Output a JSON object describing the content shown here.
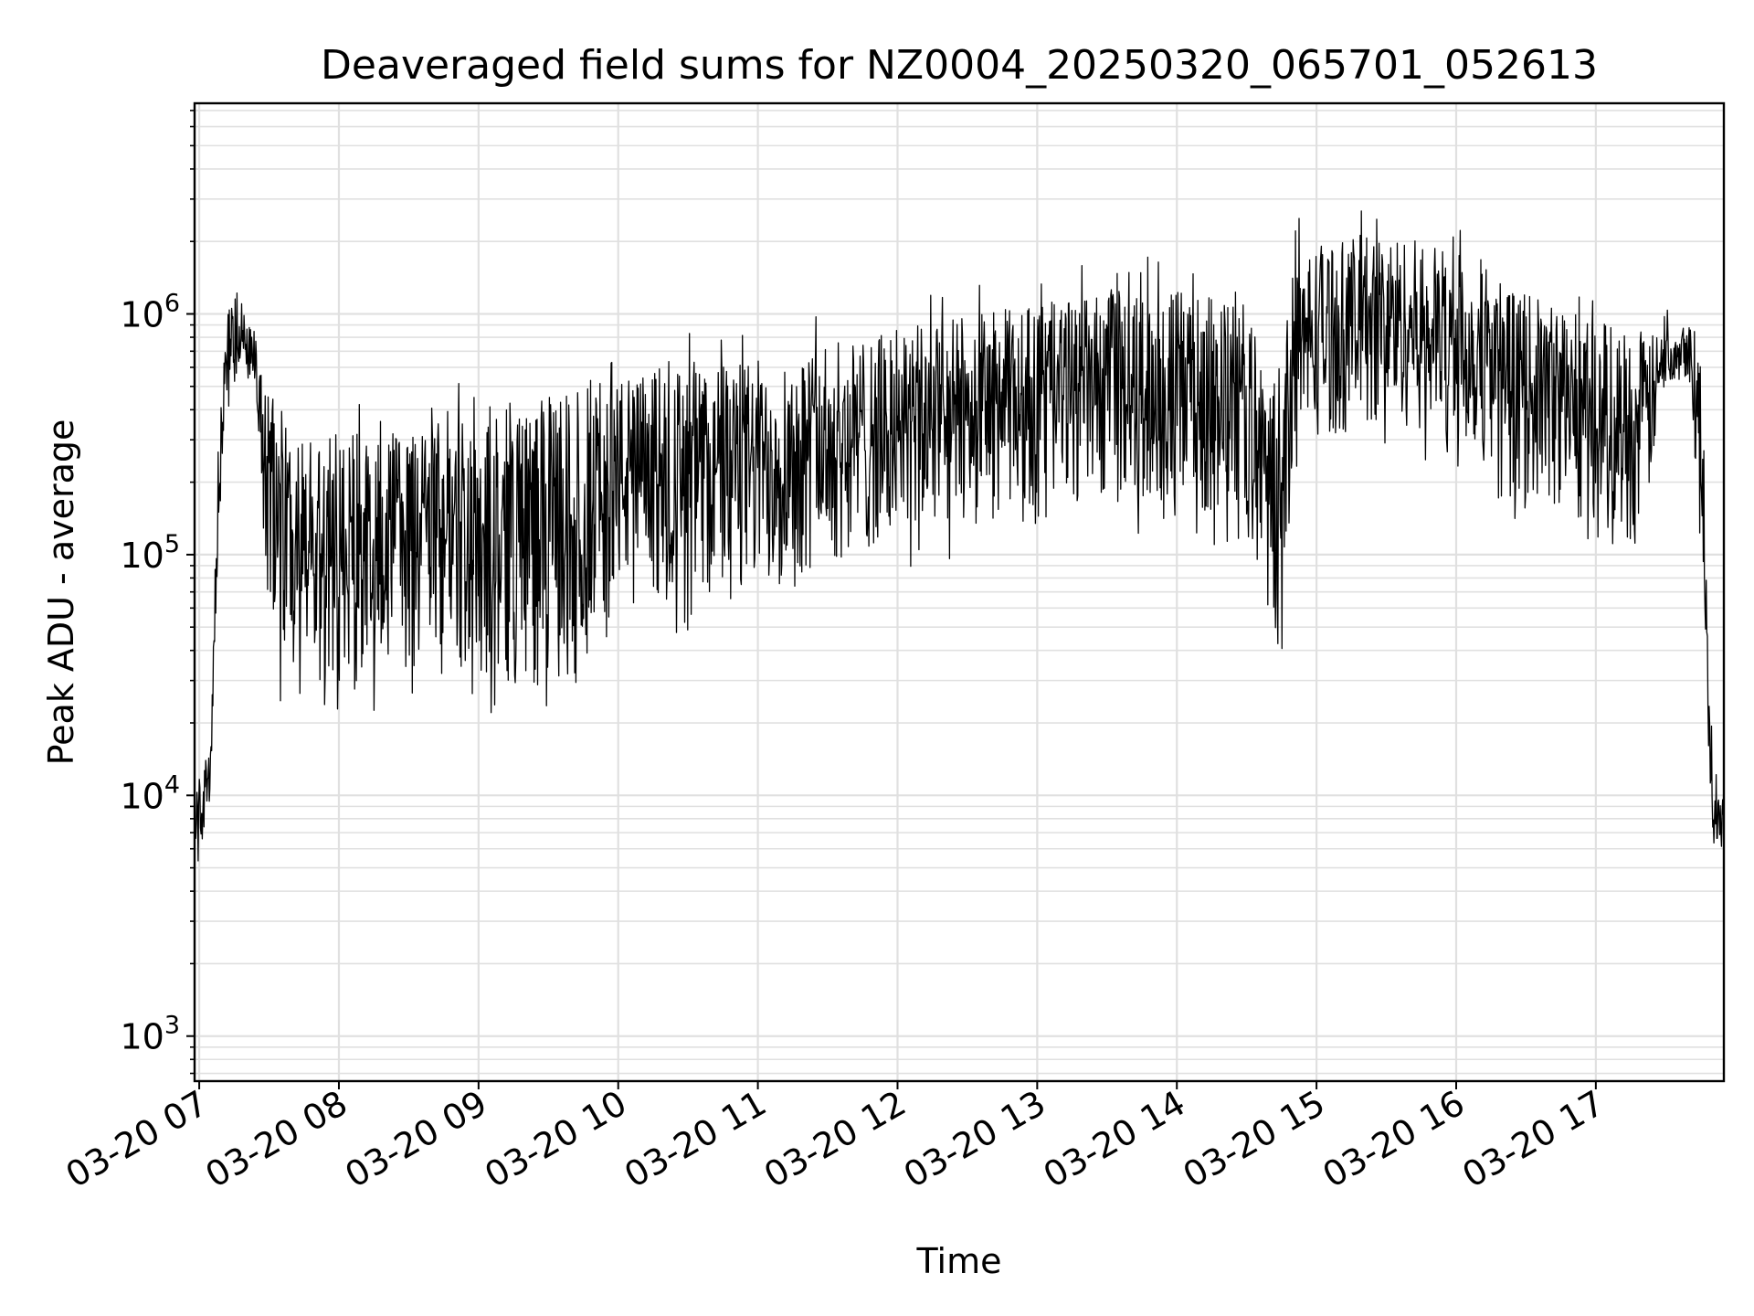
{
  "chart_data": {
    "type": "line",
    "title": "Deaveraged field sums for NZ0004_20250320_065701_052613",
    "xlabel": "Time",
    "ylabel": "Peak ADU - average",
    "y_scale": "log",
    "grid": true,
    "grid_minor": true,
    "line_color": "#000000",
    "grid_color": "#e0e0e0",
    "xlim": [
      "2025-03-20 06:58",
      "2025-03-20 17:55"
    ],
    "ylim": [
      650,
      7500000
    ],
    "x_ticks": [
      "2025-03-20 07:00",
      "2025-03-20 08:00",
      "2025-03-20 09:00",
      "2025-03-20 10:00",
      "2025-03-20 11:00",
      "2025-03-20 12:00",
      "2025-03-20 13:00",
      "2025-03-20 14:00",
      "2025-03-20 15:00",
      "2025-03-20 16:00",
      "2025-03-20 17:00"
    ],
    "x_tick_labels": [
      "03-20 07",
      "03-20 08",
      "03-20 09",
      "03-20 10",
      "03-20 11",
      "03-20 12",
      "03-20 13",
      "03-20 14",
      "03-20 15",
      "03-20 16",
      "03-20 17"
    ],
    "y_ticks": [
      1000,
      10000,
      100000,
      1000000
    ],
    "y_tick_labels": [
      {
        "base": "10",
        "exp": "3"
      },
      {
        "base": "10",
        "exp": "4"
      },
      {
        "base": "10",
        "exp": "5"
      },
      {
        "base": "10",
        "exp": "6"
      }
    ],
    "envelope": {
      "x": [
        "2025-03-20 06:58",
        "2025-03-20 07:00",
        "2025-03-20 07:05",
        "2025-03-20 07:08",
        "2025-03-20 07:12",
        "2025-03-20 07:15",
        "2025-03-20 07:20",
        "2025-03-20 07:25",
        "2025-03-20 07:30",
        "2025-03-20 07:35",
        "2025-03-20 07:45",
        "2025-03-20 08:00",
        "2025-03-20 08:30",
        "2025-03-20 09:00",
        "2025-03-20 09:30",
        "2025-03-20 09:45",
        "2025-03-20 10:00",
        "2025-03-20 10:30",
        "2025-03-20 11:00",
        "2025-03-20 11:30",
        "2025-03-20 12:00",
        "2025-03-20 12:30",
        "2025-03-20 13:00",
        "2025-03-20 13:30",
        "2025-03-20 14:00",
        "2025-03-20 14:30",
        "2025-03-20 14:40",
        "2025-03-20 14:45",
        "2025-03-20 14:50",
        "2025-03-20 15:00",
        "2025-03-20 15:30",
        "2025-03-20 16:00",
        "2025-03-20 16:30",
        "2025-03-20 17:00",
        "2025-03-20 17:20",
        "2025-03-20 17:30",
        "2025-03-20 17:40",
        "2025-03-20 17:45",
        "2025-03-20 17:50",
        "2025-03-20 17:55"
      ],
      "low": [
        5000,
        5000,
        10000,
        80000,
        400000,
        500000,
        600000,
        350000,
        60000,
        30000,
        25000,
        25000,
        35000,
        28000,
        28000,
        40000,
        70000,
        60000,
        70000,
        90000,
        110000,
        130000,
        160000,
        170000,
        150000,
        140000,
        50000,
        40000,
        200000,
        300000,
        350000,
        300000,
        170000,
        130000,
        110000,
        500000,
        550000,
        120000,
        6000,
        6000
      ],
      "high": [
        12000,
        12000,
        15000,
        300000,
        1100000,
        1200000,
        1000000,
        800000,
        400000,
        350000,
        300000,
        320000,
        350000,
        420000,
        450000,
        500000,
        550000,
        600000,
        650000,
        750000,
        850000,
        1000000,
        1100000,
        1200000,
        1250000,
        1100000,
        500000,
        450000,
        1800000,
        2000000,
        2200000,
        1800000,
        1200000,
        1000000,
        800000,
        850000,
        1000000,
        600000,
        11000,
        11000
      ]
    }
  }
}
